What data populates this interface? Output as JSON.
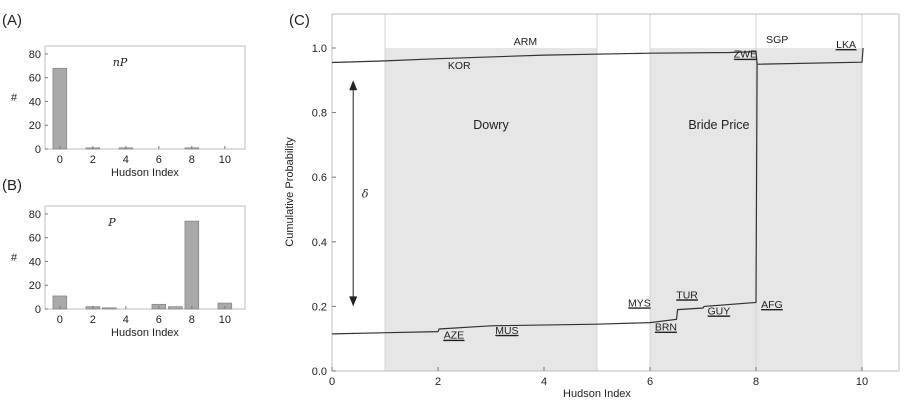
{
  "chart_data": [
    {
      "panel_label": "(A)",
      "type": "bar",
      "series_label": "nP",
      "xlabel": "Hudson Index",
      "ylabel": "#",
      "xticks": [
        "0",
        "2",
        "4",
        "6",
        "8",
        "10"
      ],
      "yticks": [
        "0",
        "20",
        "40",
        "60",
        "80"
      ],
      "ylim": [
        0,
        85
      ],
      "bar_color": "#a9a9a9",
      "x": [
        0,
        1,
        2,
        3,
        4,
        5,
        6,
        7,
        8,
        9,
        10
      ],
      "values": [
        68,
        0,
        1,
        0,
        1,
        0,
        0,
        0,
        1,
        0,
        0
      ]
    },
    {
      "panel_label": "(B)",
      "type": "bar",
      "series_label": "P",
      "xlabel": "Hudson Index",
      "ylabel": "#",
      "xticks": [
        "0",
        "2",
        "4",
        "6",
        "8",
        "10"
      ],
      "yticks": [
        "0",
        "20",
        "40",
        "60",
        "80"
      ],
      "ylim": [
        0,
        85
      ],
      "bar_color": "#a9a9a9",
      "x": [
        0,
        1,
        2,
        3,
        4,
        5,
        6,
        7,
        8,
        9,
        10
      ],
      "values": [
        11,
        0,
        2,
        1,
        0,
        0,
        4,
        2,
        74,
        0,
        5
      ]
    },
    {
      "panel_label": "(C)",
      "type": "line",
      "xlabel": "Hudson Index",
      "ylabel": "Cumulative Probability",
      "xticks": [
        "0",
        "2",
        "4",
        "6",
        "8",
        "10"
      ],
      "yticks": [
        "0.0",
        "0.2",
        "0.4",
        "0.6",
        "0.8",
        "1.0"
      ],
      "xlim": [
        0,
        10.8
      ],
      "ylim": [
        0,
        1.05
      ],
      "grid_x": [
        1,
        5,
        6,
        8,
        10
      ],
      "shaded_regions": [
        {
          "x": [
            1,
            5
          ],
          "y": [
            0,
            1.0
          ],
          "label": "Dowry",
          "label_pos": [
            3,
            0.75
          ]
        },
        {
          "x": [
            6,
            8
          ],
          "y": [
            0,
            1.0
          ],
          "label": "Bride Price",
          "label_pos": [
            7.3,
            0.75
          ]
        },
        {
          "x": [
            8,
            10
          ],
          "y": [
            0,
            1.0
          ],
          "label": "",
          "label_pos": [
            9,
            0.75
          ]
        }
      ],
      "delta_label": "δ",
      "delta_arrow": {
        "x": 0.4,
        "y": [
          0.9,
          0.2
        ]
      },
      "series": [
        {
          "color": "#333333",
          "points": [
            [
              0,
              0.955
            ],
            [
              1,
              0.96
            ],
            [
              2,
              0.967
            ],
            [
              4,
              0.978
            ],
            [
              6,
              0.984
            ],
            [
              7.5,
              0.986
            ],
            [
              8,
              0.989
            ],
            [
              8.02,
              0.95
            ],
            [
              10,
              0.956
            ],
            [
              10.02,
              1.0
            ]
          ]
        },
        {
          "color": "#333333",
          "points": [
            [
              0,
              0.115
            ],
            [
              2,
              0.122
            ],
            [
              2.02,
              0.13
            ],
            [
              3,
              0.14
            ],
            [
              5,
              0.145
            ],
            [
              6,
              0.15
            ],
            [
              6.5,
              0.16
            ],
            [
              6.52,
              0.19
            ],
            [
              7,
              0.195
            ],
            [
              7.02,
              0.2
            ],
            [
              8,
              0.212
            ],
            [
              8.02,
              0.95
            ]
          ]
        }
      ],
      "annotations": [
        {
          "text": "KOR",
          "x": 2.4,
          "y": 0.935,
          "underline": false
        },
        {
          "text": "ARM",
          "x": 3.65,
          "y": 1.01,
          "underline": false
        },
        {
          "text": "SGP",
          "x": 8.4,
          "y": 1.015,
          "underline": false
        },
        {
          "text": "LKA",
          "x": 9.7,
          "y": 1.0,
          "underline": true
        },
        {
          "text": "ZWE",
          "x": 7.8,
          "y": 0.97,
          "underline": true
        },
        {
          "text": "AZE",
          "x": 2.3,
          "y": 0.1,
          "underline": true
        },
        {
          "text": "MUS",
          "x": 3.3,
          "y": 0.115,
          "underline": true
        },
        {
          "text": "MYS",
          "x": 5.8,
          "y": 0.2,
          "underline": true
        },
        {
          "text": "BRN",
          "x": 6.3,
          "y": 0.125,
          "underline": true
        },
        {
          "text": "TUR",
          "x": 6.7,
          "y": 0.225,
          "underline": true
        },
        {
          "text": "GUY",
          "x": 7.3,
          "y": 0.175,
          "underline": true
        },
        {
          "text": "AFG",
          "x": 8.3,
          "y": 0.195,
          "underline": true
        }
      ]
    }
  ]
}
